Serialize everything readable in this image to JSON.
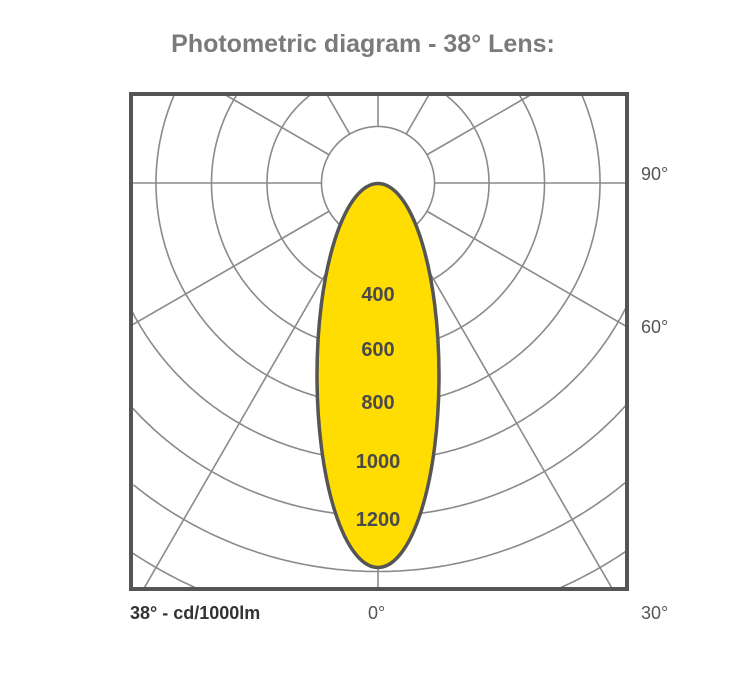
{
  "title": "Photometric diagram - 38° Lens:",
  "colors": {
    "beam_fill": "#FFDD00",
    "beam_stroke": "#555555",
    "grid": "#8a8a8a",
    "frame": "#555555",
    "title": "#7a7a7a"
  },
  "diagram": {
    "type": "polar-photometric",
    "unit_label": "38° - cd/1000lm",
    "angle_labels": {
      "zero": "0°",
      "thirty": "30°",
      "sixty": "60°",
      "ninety": "90°"
    },
    "intensity_labels": [
      "400",
      "600",
      "800",
      "1000",
      "1200"
    ],
    "radial_line_step_degrees": 30,
    "beam_angle_degrees": 38
  }
}
